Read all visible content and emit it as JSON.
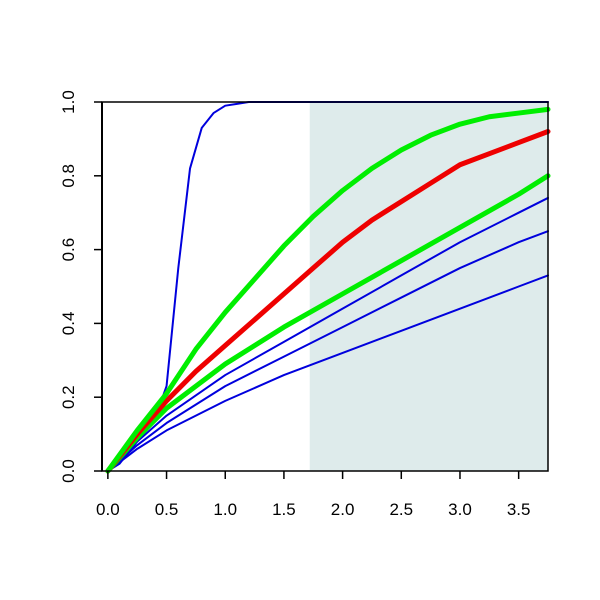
{
  "chart_data": {
    "type": "line",
    "title": "",
    "xlabel": "",
    "ylabel": "",
    "xlim": [
      -0.05,
      3.75
    ],
    "ylim": [
      0.0,
      1.0
    ],
    "x_ticks": [
      0.0,
      0.5,
      1.0,
      1.5,
      2.0,
      2.5,
      3.0,
      3.5
    ],
    "x_tick_labels": [
      "0.0",
      "0.5",
      "1.0",
      "1.5",
      "2.0",
      "2.5",
      "3.0",
      "3.5"
    ],
    "y_ticks": [
      0.0,
      0.2,
      0.4,
      0.6,
      0.8,
      1.0
    ],
    "y_tick_labels": [
      "0.0",
      "0.2",
      "0.4",
      "0.6",
      "0.8",
      "1.0"
    ],
    "grid": false,
    "shaded_region": {
      "x_from": 1.72,
      "x_to": 3.75,
      "color": "#deebeb"
    },
    "series": [
      {
        "color": "#0000dd",
        "weight": "thin",
        "x": [
          0.0,
          0.1,
          0.2,
          0.3,
          0.4,
          0.5,
          0.6,
          0.7,
          0.8,
          0.9,
          1.0,
          1.1,
          1.2,
          1.4,
          1.6,
          1.8,
          2.2,
          2.6,
          3.0,
          3.4,
          3.75
        ],
        "y": [
          0.0,
          0.02,
          0.06,
          0.1,
          0.14,
          0.23,
          0.55,
          0.82,
          0.93,
          0.97,
          0.99,
          0.995,
          1.0,
          1.0,
          1.0,
          1.0,
          1.0,
          1.0,
          1.0,
          1.0,
          1.0
        ]
      },
      {
        "color": "#0000dd",
        "weight": "thin",
        "x": [
          0.0,
          0.25,
          0.5,
          1.0,
          1.5,
          2.0,
          2.5,
          3.0,
          3.5,
          3.75
        ],
        "y": [
          0.0,
          0.06,
          0.11,
          0.19,
          0.26,
          0.32,
          0.38,
          0.44,
          0.5,
          0.53
        ]
      },
      {
        "color": "#0000dd",
        "weight": "thin",
        "x": [
          0.0,
          0.25,
          0.5,
          1.0,
          1.5,
          2.0,
          2.5,
          3.0,
          3.5,
          3.75
        ],
        "y": [
          0.0,
          0.07,
          0.13,
          0.23,
          0.31,
          0.39,
          0.47,
          0.55,
          0.62,
          0.65
        ]
      },
      {
        "color": "#0000dd",
        "weight": "thin",
        "x": [
          0.0,
          0.25,
          0.5,
          1.0,
          1.5,
          2.0,
          2.5,
          3.0,
          3.5,
          3.75
        ],
        "y": [
          0.0,
          0.08,
          0.15,
          0.26,
          0.35,
          0.44,
          0.53,
          0.62,
          0.7,
          0.74
        ]
      },
      {
        "color": "#00ee00",
        "weight": "thick",
        "x": [
          0.0,
          0.25,
          0.5,
          1.0,
          1.5,
          2.0,
          2.5,
          3.0,
          3.5,
          3.75
        ],
        "y": [
          0.0,
          0.09,
          0.17,
          0.29,
          0.39,
          0.48,
          0.57,
          0.66,
          0.75,
          0.8
        ]
      },
      {
        "color": "#ee0000",
        "weight": "thick",
        "x": [
          0.0,
          0.25,
          0.5,
          0.75,
          1.0,
          1.25,
          1.5,
          1.75,
          2.0,
          2.25,
          2.5,
          2.75,
          3.0,
          3.25,
          3.5,
          3.75
        ],
        "y": [
          0.0,
          0.1,
          0.19,
          0.27,
          0.34,
          0.41,
          0.48,
          0.55,
          0.62,
          0.68,
          0.73,
          0.78,
          0.83,
          0.86,
          0.89,
          0.92
        ]
      },
      {
        "color": "#00ee00",
        "weight": "thick",
        "x": [
          0.0,
          0.25,
          0.5,
          0.75,
          1.0,
          1.25,
          1.5,
          1.75,
          2.0,
          2.25,
          2.5,
          2.75,
          3.0,
          3.25,
          3.5,
          3.75
        ],
        "y": [
          0.0,
          0.11,
          0.21,
          0.33,
          0.43,
          0.52,
          0.61,
          0.69,
          0.76,
          0.82,
          0.87,
          0.91,
          0.94,
          0.96,
          0.97,
          0.98
        ]
      }
    ]
  }
}
